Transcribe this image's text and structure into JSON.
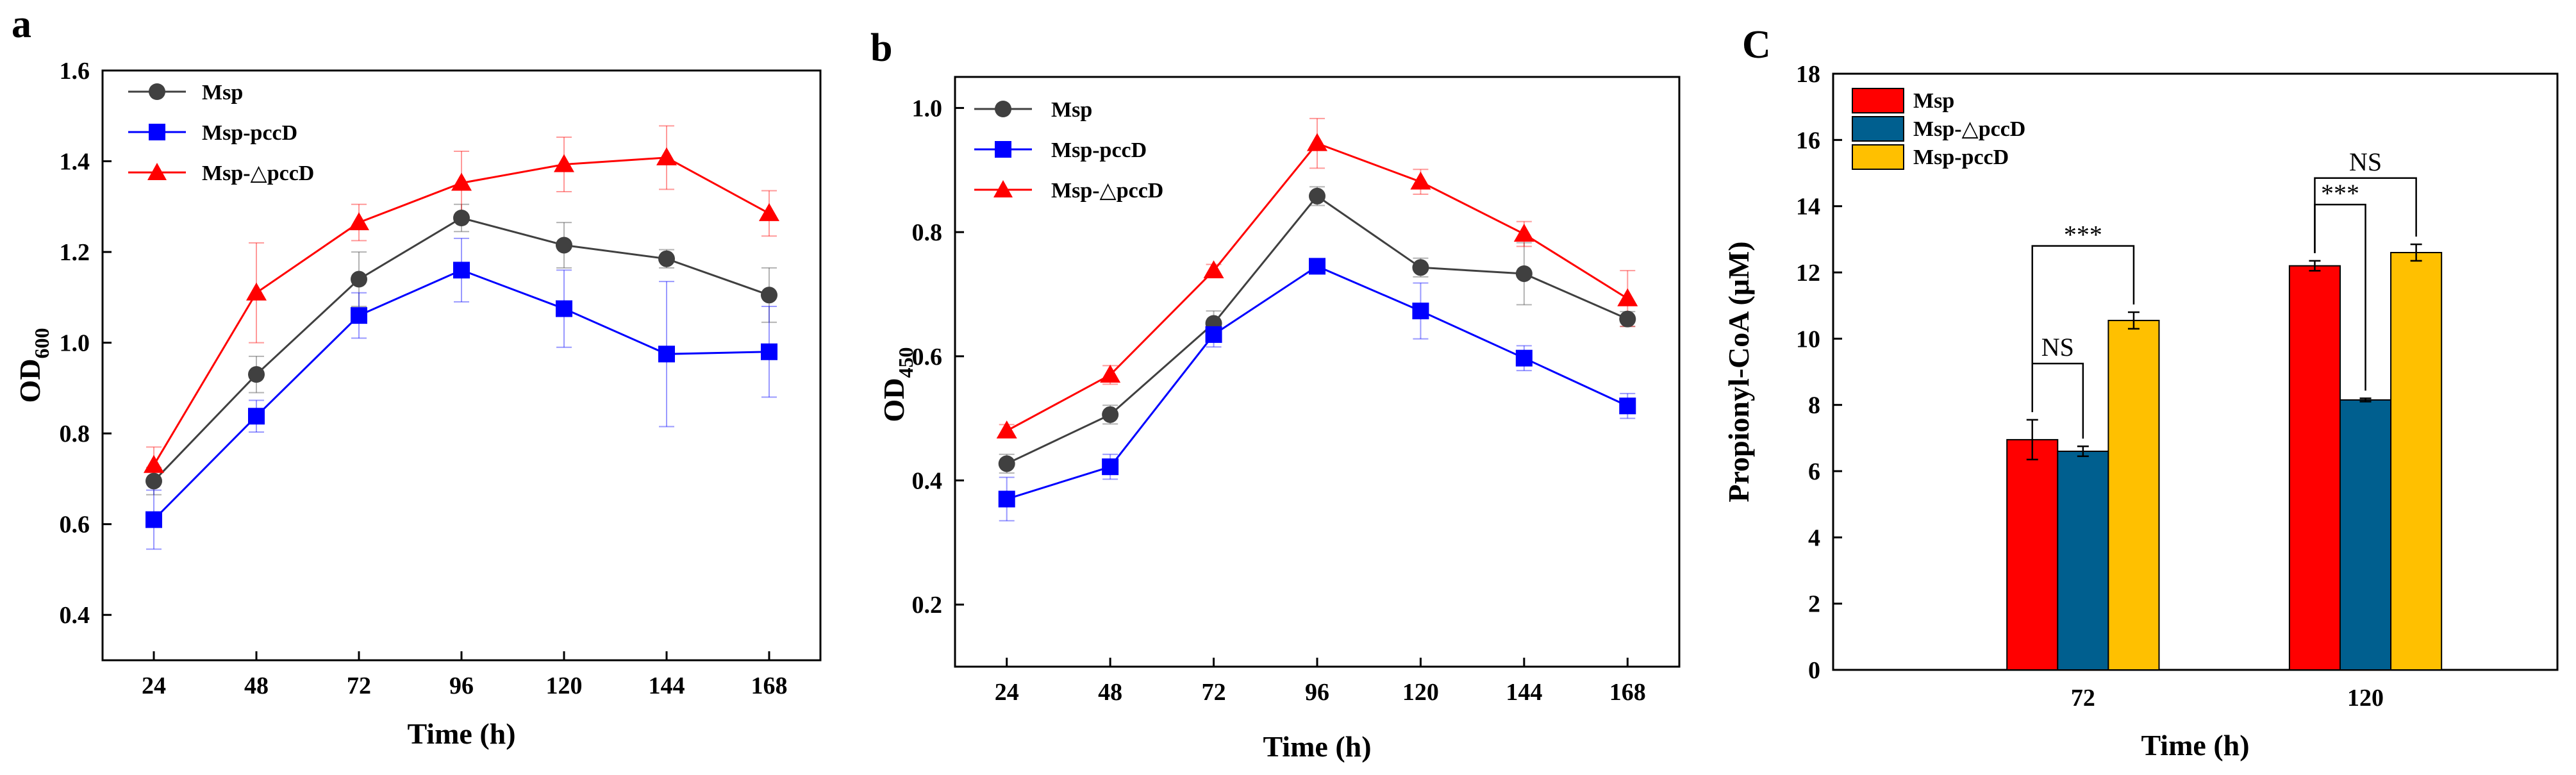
{
  "chart_data": [
    {
      "panel": "a",
      "type": "line",
      "title": "",
      "xlabel": "Time (h)",
      "ylabel_main": "OD",
      "ylabel_sub": "600",
      "categories": [
        "24",
        "48",
        "72",
        "96",
        "120",
        "144",
        "168"
      ],
      "x": [
        24,
        48,
        72,
        96,
        120,
        144,
        168
      ],
      "xlim": [
        12,
        180
      ],
      "ylim": [
        0.3,
        1.6
      ],
      "yticks": [
        "0.4",
        "0.6",
        "0.8",
        "1.0",
        "1.2",
        "1.4",
        "1.6"
      ],
      "legend_position": "top-left",
      "series": [
        {
          "name": "Msp",
          "color": "#404040",
          "marker": "circle",
          "values": [
            0.695,
            0.93,
            1.14,
            1.275,
            1.215,
            1.185,
            1.105
          ],
          "errors": [
            0.03,
            0.04,
            0.06,
            0.03,
            0.05,
            0.02,
            0.06
          ]
        },
        {
          "name": "Msp-pccD",
          "color": "#0000ff",
          "marker": "square",
          "values": [
            0.61,
            0.838,
            1.06,
            1.16,
            1.075,
            0.975,
            0.98
          ],
          "errors": [
            0.065,
            0.035,
            0.05,
            0.07,
            0.085,
            0.16,
            0.1
          ]
        },
        {
          "name": "Msp-△pccD",
          "color": "#ff0000",
          "marker": "triangle",
          "values": [
            0.73,
            1.11,
            1.265,
            1.352,
            1.393,
            1.408,
            1.285
          ],
          "errors": [
            0.04,
            0.11,
            0.04,
            0.07,
            0.06,
            0.07,
            0.05
          ]
        }
      ]
    },
    {
      "panel": "b",
      "type": "line",
      "title": "",
      "xlabel": "Time (h)",
      "ylabel_main": "OD",
      "ylabel_sub": "450",
      "categories": [
        "24",
        "48",
        "72",
        "96",
        "120",
        "144",
        "168"
      ],
      "x": [
        24,
        48,
        72,
        96,
        120,
        144,
        168
      ],
      "xlim": [
        12,
        180
      ],
      "ylim": [
        0.1,
        1.05
      ],
      "yticks": [
        "0.2",
        "0.4",
        "0.6",
        "0.8",
        "1.0"
      ],
      "legend_position": "top-left",
      "series": [
        {
          "name": "Msp",
          "color": "#404040",
          "marker": "circle",
          "values": [
            0.427,
            0.506,
            0.653,
            0.858,
            0.743,
            0.733,
            0.66
          ],
          "errors": [
            0.015,
            0.015,
            0.02,
            0.015,
            0.015,
            0.05,
            0.012
          ]
        },
        {
          "name": "Msp-pccD",
          "color": "#0000ff",
          "marker": "square",
          "values": [
            0.37,
            0.422,
            0.635,
            0.745,
            0.673,
            0.597,
            0.52
          ],
          "errors": [
            0.035,
            0.02,
            0.02,
            0.01,
            0.045,
            0.02,
            0.02
          ]
        },
        {
          "name": "Msp-△pccD",
          "color": "#ff0000",
          "marker": "triangle",
          "values": [
            0.48,
            0.57,
            0.738,
            0.943,
            0.881,
            0.797,
            0.693
          ],
          "errors": [
            0.01,
            0.015,
            0.01,
            0.04,
            0.02,
            0.02,
            0.045
          ]
        }
      ]
    },
    {
      "panel": "C",
      "type": "bar",
      "title": "",
      "xlabel": "Time (h)",
      "ylabel": "Propionyl-CoA (μM)",
      "categories": [
        "72",
        "120"
      ],
      "ylim": [
        0,
        18
      ],
      "yticks": [
        "0",
        "2",
        "4",
        "6",
        "8",
        "10",
        "12",
        "14",
        "16",
        "18"
      ],
      "legend_position": "top-left",
      "series": [
        {
          "name": "Msp",
          "color": "#ff0000",
          "values": [
            6.95,
            12.2
          ],
          "errors": [
            0.6,
            0.15
          ]
        },
        {
          "name": "Msp-△pccD",
          "color": "#005f8f",
          "values": [
            6.6,
            8.15
          ],
          "errors": [
            0.15,
            0.05
          ]
        },
        {
          "name": "Msp-pccD",
          "color": "#ffc000",
          "values": [
            10.55,
            12.6
          ],
          "errors": [
            0.25,
            0.25
          ]
        }
      ],
      "significance": [
        {
          "label": "NS",
          "category_index": 0,
          "series_from": 0,
          "series_to": 1
        },
        {
          "label": "***",
          "category_index": 0,
          "series_from": 0,
          "series_to": 2
        },
        {
          "label": "***",
          "category_index": 1,
          "series_from": 0,
          "series_to": 1
        },
        {
          "label": "NS",
          "category_index": 1,
          "series_from": 0,
          "series_to": 2
        }
      ]
    }
  ]
}
